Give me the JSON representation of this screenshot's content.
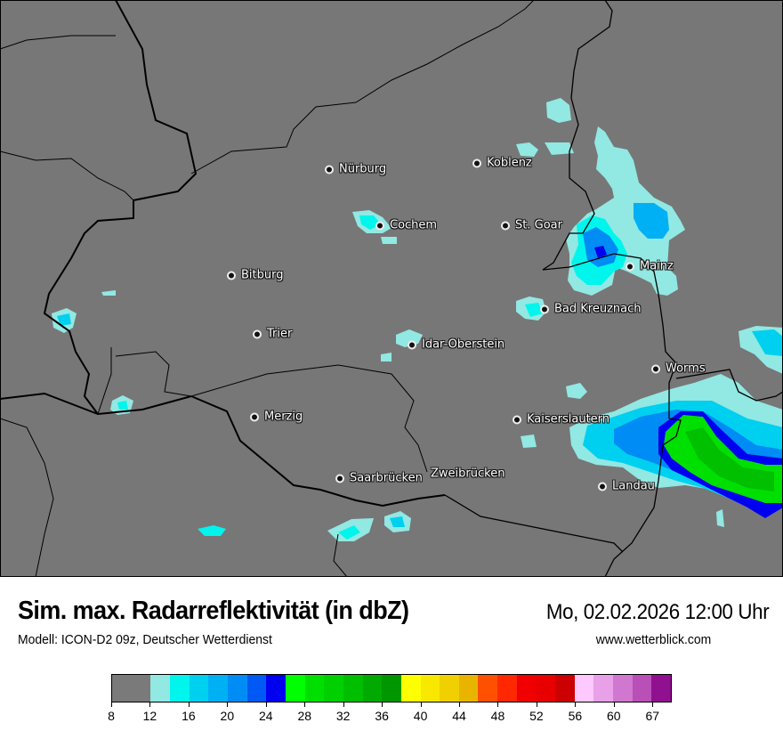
{
  "title": "Sim. max. Radarreflektivität (in dbZ)",
  "datetime": "Mo, 02.02.2026 12:00 Uhr",
  "model": "Modell: ICON-D2 09z, Deutscher Wetterdienst",
  "website": "www.wetterblick.com",
  "map": {
    "background_color": "#777777",
    "cities": [
      {
        "name": "Nürburg"
      },
      {
        "name": "Koblenz"
      },
      {
        "name": "Cochem"
      },
      {
        "name": "St. Goar"
      },
      {
        "name": "Bitburg"
      },
      {
        "name": "Mainz"
      },
      {
        "name": "Bad Kreuznach"
      },
      {
        "name": "Trier"
      },
      {
        "name": "Idar-Oberstein"
      },
      {
        "name": "Worms"
      },
      {
        "name": "Merzig"
      },
      {
        "name": "Kaiserslautern"
      },
      {
        "name": "Saarbrücken"
      },
      {
        "name": "Zweibrücken"
      },
      {
        "name": "Landau"
      }
    ]
  },
  "legend": {
    "unit": "dbZ",
    "bins": [
      {
        "from": 8,
        "to": 12,
        "color": "#7a7a7a"
      },
      {
        "from": 12,
        "to": 14,
        "color": "#92e8e2"
      },
      {
        "from": 14,
        "to": 16,
        "color": "#00f5ec"
      },
      {
        "from": 16,
        "to": 18,
        "color": "#00d0f0"
      },
      {
        "from": 18,
        "to": 20,
        "color": "#00b0f5"
      },
      {
        "from": 20,
        "to": 22,
        "color": "#008cf5"
      },
      {
        "from": 22,
        "to": 24,
        "color": "#0058f5"
      },
      {
        "from": 24,
        "to": 26,
        "color": "#0000f0"
      },
      {
        "from": 26,
        "to": 28,
        "color": "#00ff00"
      },
      {
        "from": 28,
        "to": 30,
        "color": "#00e000"
      },
      {
        "from": 30,
        "to": 32,
        "color": "#00d000"
      },
      {
        "from": 32,
        "to": 34,
        "color": "#00bf00"
      },
      {
        "from": 34,
        "to": 36,
        "color": "#00aa00"
      },
      {
        "from": 36,
        "to": 38,
        "color": "#009600"
      },
      {
        "from": 38,
        "to": 40,
        "color": "#ffff00"
      },
      {
        "from": 40,
        "to": 42,
        "color": "#f8e800"
      },
      {
        "from": 42,
        "to": 44,
        "color": "#f0d000"
      },
      {
        "from": 44,
        "to": 46,
        "color": "#e8b400"
      },
      {
        "from": 46,
        "to": 48,
        "color": "#ff5000"
      },
      {
        "from": 48,
        "to": 50,
        "color": "#ff2800"
      },
      {
        "from": 50,
        "to": 52,
        "color": "#f00000"
      },
      {
        "from": 52,
        "to": 54,
        "color": "#e80000"
      },
      {
        "from": 54,
        "to": 56,
        "color": "#cc0000"
      },
      {
        "from": 56,
        "to": 58,
        "color": "#ffc8ff"
      },
      {
        "from": 58,
        "to": 60,
        "color": "#e8a0e8"
      },
      {
        "from": 60,
        "to": 63,
        "color": "#d078d0"
      },
      {
        "from": 63,
        "to": 67,
        "color": "#b850b8"
      },
      {
        "from": 67,
        "to": null,
        "color": "#901090"
      }
    ],
    "tick_labels": [
      "8",
      "12",
      "16",
      "20",
      "24",
      "28",
      "32",
      "36",
      "40",
      "44",
      "48",
      "52",
      "56",
      "60",
      "67"
    ]
  }
}
